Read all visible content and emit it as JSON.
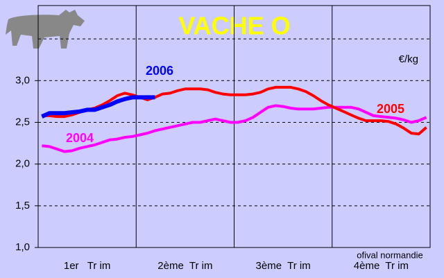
{
  "chart_data": {
    "type": "line",
    "title": "VACHE O",
    "unit_label": "€/kg",
    "source": "ofival normandie",
    "categories": [
      "1er   Tr im",
      "2ème  Tr im",
      "3ème  Tr im",
      "4ème  Tr im"
    ],
    "x": [
      1,
      2,
      3,
      4,
      5,
      6,
      7,
      8,
      9,
      10,
      11,
      12,
      13,
      14,
      15,
      16,
      17,
      18,
      19,
      20,
      21,
      22,
      23,
      24,
      25,
      26,
      27,
      28,
      29,
      30,
      31,
      32,
      33,
      34,
      35,
      36,
      37,
      38,
      39,
      40,
      41,
      42,
      43,
      44,
      45,
      46,
      47,
      48,
      49,
      50,
      51,
      52
    ],
    "xlim": [
      0.5,
      52.5
    ],
    "ylim": [
      1.0,
      3.9
    ],
    "yticks": [
      {
        "value": 1.0,
        "label": "1,0"
      },
      {
        "value": 1.5,
        "label": "1,5"
      },
      {
        "value": 2.0,
        "label": "2,0"
      },
      {
        "value": 2.5,
        "label": "2,5"
      },
      {
        "value": 3.0,
        "label": "3,0"
      }
    ],
    "unlabeled_gridlines": [
      3.5
    ],
    "grid": true,
    "series": [
      {
        "name": "2004",
        "color": "#ff00ff",
        "values": [
          2.22,
          2.21,
          2.18,
          2.15,
          2.16,
          2.19,
          2.21,
          2.23,
          2.26,
          2.29,
          2.3,
          2.32,
          2.33,
          2.35,
          2.37,
          2.4,
          2.42,
          2.44,
          2.46,
          2.48,
          2.5,
          2.5,
          2.52,
          2.54,
          2.52,
          2.5,
          2.5,
          2.52,
          2.56,
          2.62,
          2.68,
          2.7,
          2.69,
          2.67,
          2.66,
          2.66,
          2.66,
          2.67,
          2.68,
          2.68,
          2.68,
          2.68,
          2.66,
          2.62,
          2.58,
          2.57,
          2.56,
          2.55,
          2.53,
          2.5,
          2.52,
          2.56
        ]
      },
      {
        "name": "2005",
        "color": "#ff0000",
        "values": [
          2.58,
          2.58,
          2.57,
          2.57,
          2.59,
          2.62,
          2.65,
          2.67,
          2.71,
          2.76,
          2.82,
          2.85,
          2.83,
          2.8,
          2.77,
          2.8,
          2.84,
          2.85,
          2.88,
          2.9,
          2.9,
          2.9,
          2.89,
          2.86,
          2.84,
          2.83,
          2.83,
          2.83,
          2.84,
          2.86,
          2.9,
          2.92,
          2.92,
          2.92,
          2.9,
          2.87,
          2.82,
          2.76,
          2.71,
          2.67,
          2.63,
          2.59,
          2.55,
          2.52,
          2.52,
          2.52,
          2.51,
          2.48,
          2.43,
          2.37,
          2.36,
          2.44
        ]
      },
      {
        "name": "2006",
        "color": "#0000ff",
        "values": [
          2.57,
          2.61,
          2.61,
          2.61,
          2.62,
          2.63,
          2.65,
          2.65,
          2.68,
          2.71,
          2.75,
          2.78,
          2.8,
          2.8,
          2.8,
          2.8,
          null,
          null,
          null,
          null,
          null,
          null,
          null,
          null,
          null,
          null,
          null,
          null,
          null,
          null,
          null,
          null,
          null,
          null,
          null,
          null,
          null,
          null,
          null,
          null,
          null,
          null,
          null,
          null,
          null,
          null,
          null,
          null,
          null,
          null,
          null,
          null
        ]
      }
    ]
  }
}
